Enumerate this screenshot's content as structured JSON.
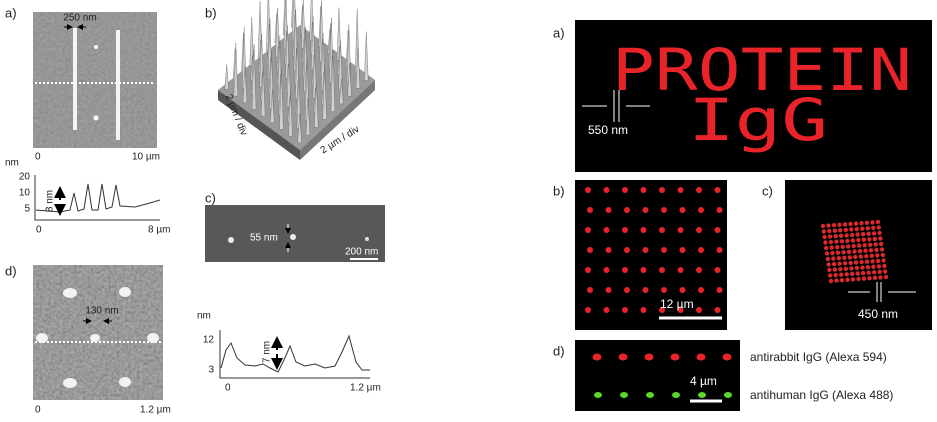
{
  "left": {
    "a": {
      "label": "a)",
      "scale": "250 nm",
      "x_start": "0",
      "x_end": "10 µm",
      "profile": {
        "y_unit": "nm",
        "yticks": [
          "20",
          "10",
          "5"
        ],
        "height": "8 nm",
        "x_start": "0",
        "x_end": "8 µm"
      }
    },
    "b": {
      "label": "b)",
      "axis_1": "2 µm / div",
      "axis_2": "2 µm / div"
    },
    "c": {
      "label": "c)",
      "feature": "55 nm",
      "scale": "200 nm"
    },
    "d": {
      "label": "d)",
      "spacing": "130 nm",
      "x_start": "0",
      "x_end": "1.2 µm",
      "profile": {
        "y_unit": "nm",
        "yticks": [
          "12",
          "3"
        ],
        "height": "7 nm",
        "x_start": "0",
        "x_end": "1.2 µm"
      }
    }
  },
  "right": {
    "a": {
      "label": "a)",
      "line_1": "PROTEIN",
      "line_2": "IgG",
      "width": "550 nm"
    },
    "b": {
      "label": "b)",
      "scale": "12 µm"
    },
    "c": {
      "label": "c)",
      "width": "450 nm"
    },
    "d": {
      "label": "d)",
      "scale": "4 µm",
      "legend_red": "antirabbit IgG (Alexa 594)",
      "legend_green": "antihuman IgG (Alexa 488)"
    }
  }
}
